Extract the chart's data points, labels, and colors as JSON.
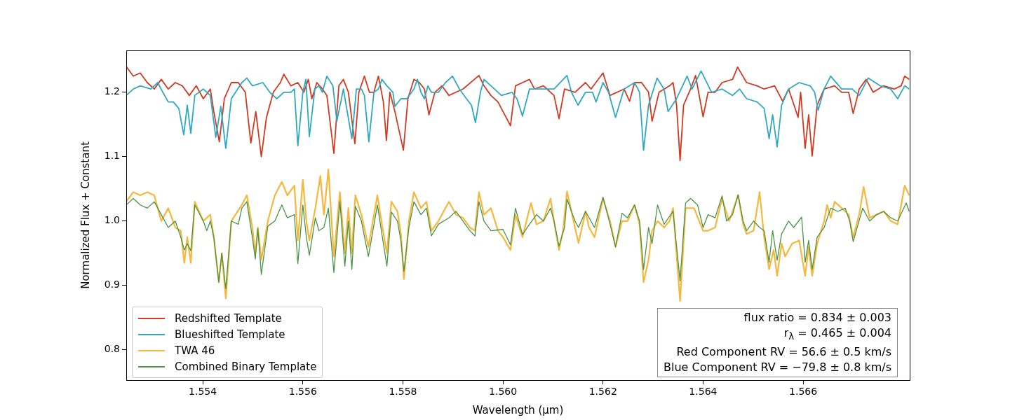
{
  "chart_data": {
    "type": "line",
    "xlabel": "Wavelength (μm)",
    "ylabel": "Normalized Flux + Constant",
    "xlim": [
      1.55247,
      1.56813
    ],
    "ylim": [
      0.753,
      1.265
    ],
    "xticks": [
      1.554,
      1.556,
      1.558,
      {
        "value": 1.56,
        "label": "1.560"
      },
      1.562,
      1.564,
      1.566
    ],
    "yticks": [
      0.8,
      0.9,
      {
        "value": 1,
        "label": "1.0"
      },
      1.1,
      1.2
    ],
    "grid": false,
    "legend": "bottom left",
    "marker": "none",
    "line_style": "solid",
    "annotations": [
      "flux ratio = 0.834 ± 0.003",
      "r$_{λ}$ = 0.465 ± 0.004",
      "Red Component RV = 56.6 ± 0.5 km/s",
      "Blue Component RV = −79.8 ± 0.8 km/s"
    ],
    "series": [
      {
        "name": "Redshifted Template",
        "color": "#d03a23",
        "x": [
          1.55247,
          1.55261,
          1.55275,
          1.55289,
          1.55303,
          1.55317,
          1.55331,
          1.55345,
          1.55359,
          1.55373,
          1.55387,
          1.55401,
          1.55415,
          1.55422,
          1.55433,
          1.55443,
          1.55457,
          1.55471,
          1.55485,
          1.55496,
          1.55506,
          1.55517,
          1.55527,
          1.55541,
          1.55555,
          1.55562,
          1.55576,
          1.5559,
          1.55602,
          1.55611,
          1.55618,
          1.55628,
          1.55639,
          1.55648,
          1.55662,
          1.55672,
          1.55681,
          1.55691,
          1.55704,
          1.55712,
          1.55723,
          1.55733,
          1.55742,
          1.55751,
          1.55761,
          1.55767,
          1.55774,
          1.55784,
          1.55801,
          1.5581,
          1.55822,
          1.55833,
          1.55843,
          1.55852,
          1.55864,
          1.55878,
          1.55892,
          1.55906,
          1.5592,
          1.55952,
          1.55962,
          1.55976,
          1.5599,
          1.56015,
          1.56025,
          1.56039,
          1.56053,
          1.56063,
          1.56081,
          1.56102,
          1.56112,
          1.56123,
          1.56144,
          1.56165,
          1.56176,
          1.562,
          1.56214,
          1.56242,
          1.56253,
          1.56263,
          1.56277,
          1.56291,
          1.56298,
          1.56312,
          1.56333,
          1.5634,
          1.56347,
          1.56354,
          1.56361,
          1.56375,
          1.56385,
          1.564,
          1.5641,
          1.56424,
          1.56438,
          1.56459,
          1.56469,
          1.56487,
          1.56508,
          1.56522,
          1.56543,
          1.56559,
          1.56571,
          1.5659,
          1.56595,
          1.56604,
          1.56611,
          1.56618,
          1.56628,
          1.56642,
          1.56663,
          1.56677,
          1.56691,
          1.567,
          1.56712,
          1.56726,
          1.5674,
          1.56761,
          1.56782,
          1.56796,
          1.56803,
          1.56812
        ],
        "values": [
          1.24,
          1.225,
          1.23,
          1.215,
          1.205,
          1.22,
          1.205,
          1.215,
          1.21,
          1.195,
          1.21,
          1.19,
          1.205,
          1.17,
          1.123,
          1.19,
          1.215,
          1.215,
          1.2,
          1.121,
          1.17,
          1.1,
          1.16,
          1.2,
          1.215,
          1.228,
          1.21,
          1.215,
          1.2,
          1.22,
          1.19,
          1.215,
          1.205,
          1.195,
          1.105,
          1.21,
          1.22,
          1.2,
          1.12,
          1.2,
          1.225,
          1.2,
          1.2,
          1.225,
          1.185,
          1.125,
          1.2,
          1.17,
          1.11,
          1.19,
          1.22,
          1.215,
          1.205,
          1.165,
          1.2,
          1.21,
          1.195,
          1.2,
          1.205,
          1.226,
          1.21,
          1.195,
          1.185,
          1.148,
          1.21,
          1.215,
          1.22,
          1.205,
          1.21,
          1.195,
          1.159,
          1.205,
          1.2,
          1.215,
          1.205,
          1.23,
          1.195,
          1.205,
          1.186,
          1.215,
          1.215,
          1.2,
          1.155,
          1.2,
          1.21,
          1.215,
          1.18,
          1.094,
          1.18,
          1.205,
          1.226,
          1.162,
          1.2,
          1.2,
          1.215,
          1.22,
          1.239,
          1.215,
          1.21,
          1.205,
          1.21,
          1.186,
          1.205,
          1.161,
          1.2,
          1.113,
          1.165,
          1.101,
          1.18,
          1.205,
          1.21,
          1.2,
          1.2,
          1.167,
          1.205,
          1.22,
          1.2,
          1.21,
          1.205,
          1.21,
          1.225,
          1.22
        ]
      },
      {
        "name": "Blueshifted Template",
        "color": "#2fa9bf",
        "x": [
          1.55247,
          1.55261,
          1.55275,
          1.55296,
          1.5531,
          1.5532,
          1.55331,
          1.55341,
          1.55352,
          1.55362,
          1.55369,
          1.55376,
          1.55384,
          1.55401,
          1.55415,
          1.55426,
          1.55436,
          1.55446,
          1.55457,
          1.55478,
          1.55488,
          1.55499,
          1.5552,
          1.55534,
          1.55548,
          1.55562,
          1.55576,
          1.55583,
          1.5559,
          1.556,
          1.55606,
          1.55613,
          1.55624,
          1.55632,
          1.55639,
          1.55648,
          1.5566,
          1.55668,
          1.55681,
          1.55698,
          1.55707,
          1.55717,
          1.55723,
          1.55732,
          1.55742,
          1.55751,
          1.55758,
          1.55768,
          1.5578,
          1.55784,
          1.55796,
          1.55808,
          1.55822,
          1.55829,
          1.55836,
          1.55843,
          1.5585,
          1.55857,
          1.55871,
          1.55885,
          1.55899,
          1.55913,
          1.55927,
          1.55937,
          1.55945,
          1.55955,
          1.55962,
          1.55976,
          1.55997,
          1.56018,
          1.56028,
          1.56039,
          1.56053,
          1.56074,
          1.56102,
          1.56128,
          1.56137,
          1.5615,
          1.56165,
          1.56179,
          1.56186,
          1.562,
          1.56211,
          1.56225,
          1.56242,
          1.56263,
          1.56273,
          1.56281,
          1.56291,
          1.56308,
          1.56322,
          1.5633,
          1.56347,
          1.56368,
          1.56378,
          1.56396,
          1.56417,
          1.56438,
          1.56459,
          1.56473,
          1.56487,
          1.56508,
          1.56522,
          1.56532,
          1.56539,
          1.56548,
          1.56557,
          1.56571,
          1.56592,
          1.56614,
          1.56623,
          1.5663,
          1.56642,
          1.56655,
          1.56677,
          1.56698,
          1.56712,
          1.5673,
          1.56754,
          1.56775,
          1.56789,
          1.56803,
          1.56812
        ],
        "values": [
          1.195,
          1.205,
          1.21,
          1.205,
          1.215,
          1.2,
          1.185,
          1.185,
          1.175,
          1.134,
          1.18,
          1.136,
          1.195,
          1.205,
          1.195,
          1.13,
          1.178,
          1.113,
          1.19,
          1.215,
          1.222,
          1.21,
          1.215,
          1.2,
          1.19,
          1.2,
          1.2,
          1.205,
          1.117,
          1.2,
          1.22,
          1.131,
          1.205,
          1.21,
          1.2,
          1.225,
          1.21,
          1.155,
          1.205,
          1.128,
          1.205,
          1.205,
          1.195,
          1.123,
          1.2,
          1.205,
          1.22,
          1.21,
          1.2,
          1.178,
          1.19,
          1.19,
          1.205,
          1.22,
          1.2,
          1.19,
          1.21,
          1.2,
          1.2,
          1.215,
          1.225,
          1.205,
          1.19,
          1.18,
          1.153,
          1.2,
          1.22,
          1.21,
          1.195,
          1.2,
          1.19,
          1.163,
          1.205,
          1.205,
          1.205,
          1.226,
          1.2,
          1.18,
          1.2,
          1.2,
          1.185,
          1.215,
          1.2,
          1.161,
          1.205,
          1.215,
          1.2,
          1.11,
          1.18,
          1.222,
          1.205,
          1.17,
          1.19,
          1.225,
          1.205,
          1.233,
          1.2,
          1.205,
          1.195,
          1.205,
          1.19,
          1.185,
          1.175,
          1.128,
          1.165,
          1.115,
          1.18,
          1.205,
          1.215,
          1.21,
          1.2,
          1.172,
          1.205,
          1.225,
          1.205,
          1.205,
          1.195,
          1.222,
          1.21,
          1.205,
          1.19,
          1.21,
          1.205
        ]
      },
      {
        "name": "TWA 46",
        "color": "#f5b83d",
        "x": [
          1.55247,
          1.55261,
          1.55275,
          1.55289,
          1.55303,
          1.55317,
          1.55331,
          1.55345,
          1.55356,
          1.55363,
          1.55369,
          1.55376,
          1.55384,
          1.55401,
          1.55415,
          1.55422,
          1.55432,
          1.55438,
          1.55446,
          1.55457,
          1.55478,
          1.55488,
          1.55499,
          1.55505,
          1.5551,
          1.55517,
          1.5553,
          1.55544,
          1.55558,
          1.55569,
          1.55583,
          1.5559,
          1.556,
          1.55607,
          1.55613,
          1.55625,
          1.55635,
          1.55642,
          1.55651,
          1.55662,
          1.55674,
          1.55684,
          1.55691,
          1.55698,
          1.55705,
          1.55717,
          1.55731,
          1.55749,
          1.55758,
          1.55768,
          1.55777,
          1.55789,
          1.55796,
          1.55802,
          1.55812,
          1.55822,
          1.55836,
          1.55847,
          1.55857,
          1.55871,
          1.55892,
          1.55906,
          1.5592,
          1.55934,
          1.55944,
          1.55952,
          1.55962,
          1.55976,
          1.5599,
          1.56,
          1.56015,
          1.56025,
          1.56039,
          1.56056,
          1.56067,
          1.56081,
          1.56095,
          1.56102,
          1.56112,
          1.5612,
          1.56128,
          1.56144,
          1.56151,
          1.56165,
          1.56172,
          1.56183,
          1.562,
          1.56214,
          1.56225,
          1.56238,
          1.56249,
          1.56263,
          1.56273,
          1.56281,
          1.56291,
          1.56298,
          1.56309,
          1.56322,
          1.56333,
          1.5634,
          1.56354,
          1.56365,
          1.56382,
          1.564,
          1.5641,
          1.56424,
          1.56438,
          1.56452,
          1.5647,
          1.5648,
          1.56487,
          1.56501,
          1.56513,
          1.56522,
          1.56532,
          1.56541,
          1.56548,
          1.56557,
          1.56564,
          1.56578,
          1.56592,
          1.56604,
          1.56611,
          1.56618,
          1.56628,
          1.56642,
          1.56648,
          1.56655,
          1.56663,
          1.56677,
          1.56691,
          1.567,
          1.56712,
          1.56721,
          1.56733,
          1.56747,
          1.56761,
          1.56775,
          1.56789,
          1.56803,
          1.56812
        ],
        "values": [
          1.03,
          1.045,
          1.04,
          1.045,
          1.04,
          1.0,
          1.02,
          0.99,
          0.985,
          0.935,
          0.975,
          0.935,
          1.03,
          1.0,
          1.01,
          0.975,
          0.905,
          0.95,
          0.88,
          1.0,
          1.025,
          1.04,
          0.99,
          0.95,
          0.99,
          0.94,
          1.0,
          1.04,
          1.061,
          1.04,
          1.055,
          0.97,
          1.064,
          1.0,
          0.97,
          1.02,
          1.07,
          1.01,
          1.08,
          0.945,
          1.045,
          0.95,
          1.02,
          0.95,
          1.04,
          1.01,
          0.96,
          1.04,
          0.995,
          0.95,
          1.03,
          1.015,
          0.98,
          0.91,
          1.0,
          1.045,
          1.02,
          1.03,
          0.985,
          1.0,
          1.03,
          1.01,
          1.005,
          0.99,
          0.985,
          1.045,
          1.01,
          1.02,
          0.985,
          0.975,
          0.955,
          1.01,
          0.975,
          1.028,
          0.995,
          1.0,
          1.035,
          1.0,
          0.955,
          0.985,
          1.046,
          0.99,
          0.966,
          1.015,
          0.99,
          0.975,
          1.035,
          1.0,
          0.96,
          1.0,
          1.0,
          1.025,
          0.995,
          0.905,
          0.94,
          0.985,
          1.0,
          0.99,
          1.0,
          1.02,
          0.876,
          1.02,
          1.02,
          0.985,
          0.985,
          0.99,
          1.035,
          1.0,
          1.04,
          0.995,
          0.98,
          0.985,
          1.045,
          0.975,
          0.925,
          0.955,
          0.915,
          0.965,
          0.945,
          0.965,
          0.97,
          0.915,
          0.96,
          0.915,
          0.965,
          1.0,
          1.025,
          1.005,
          1.03,
          1.02,
          1.01,
          0.975,
          1.01,
          1.053,
          1.005,
          1.01,
          1.015,
          1.0,
          0.995,
          1.055,
          1.04
        ]
      },
      {
        "name": "Combined Binary Template",
        "color": "#4a9347",
        "x": [
          1.55247,
          1.55261,
          1.55275,
          1.55289,
          1.55303,
          1.55317,
          1.55331,
          1.55345,
          1.55356,
          1.55363,
          1.55369,
          1.55376,
          1.55384,
          1.55401,
          1.55408,
          1.55415,
          1.55422,
          1.55432,
          1.55438,
          1.55446,
          1.55457,
          1.55471,
          1.55478,
          1.55488,
          1.55499,
          1.55505,
          1.5551,
          1.55517,
          1.5553,
          1.55544,
          1.55558,
          1.55569,
          1.55583,
          1.5559,
          1.556,
          1.55607,
          1.55613,
          1.55625,
          1.55632,
          1.55642,
          1.55651,
          1.55662,
          1.55674,
          1.55684,
          1.55691,
          1.55698,
          1.55705,
          1.55717,
          1.55731,
          1.55749,
          1.55758,
          1.55768,
          1.55777,
          1.55789,
          1.55796,
          1.55802,
          1.55812,
          1.55822,
          1.55836,
          1.55847,
          1.55857,
          1.55871,
          1.55892,
          1.55906,
          1.5592,
          1.55934,
          1.55944,
          1.55952,
          1.55962,
          1.55976,
          1.56,
          1.56015,
          1.56025,
          1.56039,
          1.56053,
          1.56067,
          1.56081,
          1.56095,
          1.56102,
          1.56112,
          1.56123,
          1.56128,
          1.56144,
          1.56151,
          1.56165,
          1.56183,
          1.562,
          1.56214,
          1.56225,
          1.56238,
          1.56249,
          1.56263,
          1.56273,
          1.56281,
          1.56291,
          1.56298,
          1.56309,
          1.56322,
          1.5634,
          1.56354,
          1.56365,
          1.56375,
          1.56389,
          1.564,
          1.5641,
          1.56424,
          1.56438,
          1.56447,
          1.56459,
          1.5647,
          1.5648,
          1.56487,
          1.56501,
          1.56513,
          1.56522,
          1.56532,
          1.56539,
          1.56548,
          1.56557,
          1.56571,
          1.56581,
          1.56597,
          1.56604,
          1.56611,
          1.56618,
          1.56628,
          1.56642,
          1.56655,
          1.56669,
          1.56684,
          1.56693,
          1.567,
          1.56719,
          1.56733,
          1.56747,
          1.56761,
          1.56775,
          1.56789,
          1.56806,
          1.56812
        ],
        "values": [
          1.025,
          1.035,
          1.025,
          1.02,
          1.03,
          1.01,
          0.99,
          1.0,
          0.975,
          0.955,
          0.965,
          0.954,
          1.025,
          1.0,
          0.985,
          1.0,
          0.975,
          0.905,
          0.95,
          0.895,
          1.0,
          0.995,
          1.02,
          1.03,
          0.975,
          0.941,
          0.988,
          0.917,
          0.992,
          1.0,
          1.025,
          1.005,
          1.01,
          0.934,
          1.025,
          0.975,
          0.947,
          1.005,
          0.985,
          0.99,
          1.02,
          0.92,
          1.03,
          0.93,
          1.0,
          0.925,
          1.023,
          1.0,
          0.945,
          1.025,
          0.98,
          0.93,
          1.014,
          1.0,
          0.97,
          0.922,
          0.99,
          1.03,
          1.01,
          1.02,
          0.977,
          0.995,
          1.005,
          1.015,
          1.0,
          0.985,
          0.977,
          1.03,
          1.0,
          0.985,
          0.987,
          0.963,
          1.02,
          0.979,
          0.995,
          1.01,
          1.0,
          1.02,
          1.0,
          0.961,
          0.99,
          1.034,
          1.0,
          0.99,
          1.015,
          0.99,
          1.037,
          0.995,
          0.96,
          1.012,
          1.005,
          1.025,
          1.0,
          0.925,
          0.99,
          0.965,
          1.025,
          0.995,
          1.015,
          0.907,
          1.028,
          1.035,
          1.025,
          0.99,
          1.01,
          1.005,
          1.039,
          1.0,
          1.01,
          1.041,
          1.0,
          0.985,
          1.0,
          0.99,
          0.985,
          0.936,
          0.985,
          0.939,
          0.98,
          1.0,
          0.99,
          1.006,
          0.936,
          0.97,
          0.925,
          0.975,
          0.99,
          1.02,
          1.015,
          1.02,
          1.0,
          0.968,
          1.02,
          1.0,
          1.01,
          1.015,
          1.005,
          1.0,
          1.028,
          1.015
        ]
      }
    ]
  }
}
